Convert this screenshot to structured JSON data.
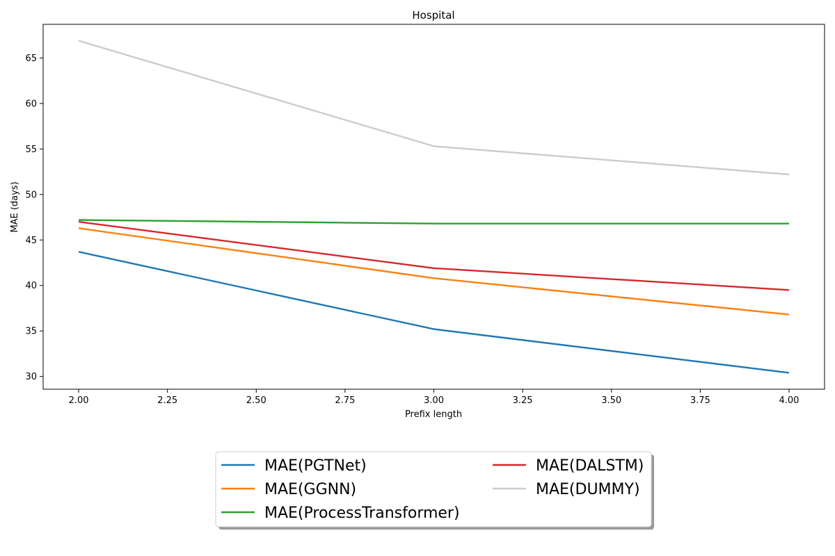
{
  "chart_data": {
    "type": "line",
    "title": "Hospital",
    "xlabel": "Prefix length",
    "ylabel": "MAE (days)",
    "xlim": [
      1.9,
      4.1
    ],
    "ylim": [
      28.6,
      68.7
    ],
    "xticks": [
      2.0,
      2.25,
      2.5,
      2.75,
      3.0,
      3.25,
      3.5,
      3.75,
      4.0
    ],
    "xtick_labels": [
      "2.00",
      "2.25",
      "2.50",
      "2.75",
      "3.00",
      "3.25",
      "3.50",
      "3.75",
      "4.00"
    ],
    "yticks": [
      30,
      35,
      40,
      45,
      50,
      55,
      60,
      65
    ],
    "ytick_labels": [
      "30",
      "35",
      "40",
      "45",
      "50",
      "55",
      "60",
      "65"
    ],
    "grid": false,
    "legend_position": "bottom-center",
    "x": [
      2,
      3,
      4
    ],
    "series": [
      {
        "name": "MAE(PGTNet)",
        "values": [
          43.7,
          35.2,
          30.4
        ],
        "color": "#1f77b4"
      },
      {
        "name": "MAE(GGNN)",
        "values": [
          46.3,
          40.8,
          36.8
        ],
        "color": "#ff7f0e"
      },
      {
        "name": "MAE(ProcessTransformer)",
        "values": [
          47.2,
          46.8,
          46.8
        ],
        "color": "#2ca02c"
      },
      {
        "name": "MAE(DALSTM)",
        "values": [
          47.0,
          41.9,
          39.5
        ],
        "color": "#d62728"
      },
      {
        "name": "MAE(DUMMY)",
        "values": [
          66.9,
          55.3,
          52.2
        ],
        "color": "#cccccc"
      }
    ]
  }
}
